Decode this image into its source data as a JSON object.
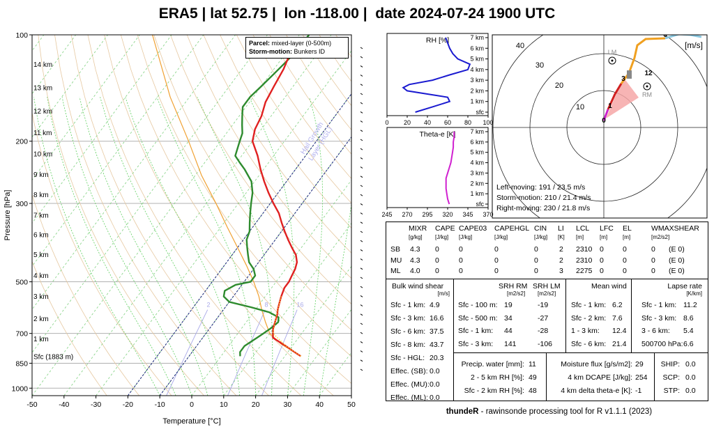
{
  "title": "ERA5 | lat 52.75 |  lon -118.00 |  date 2024-07-24 1900 UTC",
  "skewt": {
    "xlabel": "Temperature [°C]",
    "ylabel": "Pressure [hPa]",
    "xticks": [
      "-50",
      "-40",
      "-30",
      "-20",
      "-10",
      "0",
      "10",
      "20",
      "30",
      "40",
      "50"
    ],
    "xvalues": [
      -50,
      -40,
      -30,
      -20,
      -10,
      0,
      10,
      20,
      30,
      40,
      50
    ],
    "pticks": [
      "100",
      "200",
      "300",
      "500",
      "700",
      "850",
      "1000"
    ],
    "pvalues": [
      100,
      200,
      300,
      500,
      700,
      850,
      1000
    ],
    "km_labels": [
      "14 km",
      "13 km",
      "12 km",
      "11 km",
      "10 km",
      "9 km",
      "8 km",
      "7 km",
      "6 km",
      "5 km",
      "4 km",
      "3 km",
      "2 km",
      "1 km",
      "Sfc (1883 m)"
    ],
    "km_pressures": [
      121,
      141,
      164,
      189,
      217,
      248,
      283,
      323,
      367,
      418,
      479,
      549,
      634,
      723,
      812
    ],
    "legend_parcel_label": "Parcel:",
    "legend_parcel_value": "mixed-layer (0-500m)",
    "legend_storm_label": "Storm-motion:",
    "legend_storm_value": "Bunkers ID",
    "hgl_label_1": "Hail Growth",
    "hgl_label_2": "Layer (HGL)",
    "mixr_labels": [
      "2",
      "8",
      "16"
    ]
  },
  "chart_data": {
    "type": "line",
    "title": "ERA5 | lat 52.75 |  lon -118.00 |  date 2024-07-24 1900 UTC",
    "xlabel": "Temperature [°C]",
    "ylabel": "Pressure [hPa]",
    "xlim": [
      -50,
      50
    ],
    "ylim": [
      1000,
      100
    ],
    "series": [
      {
        "name": "temperature",
        "color": "#e02020",
        "p": [
          812,
          790,
          760,
          740,
          720,
          700,
          680,
          650,
          620,
          600,
          575,
          550,
          520,
          500,
          480,
          460,
          440,
          420,
          400,
          380,
          360,
          340,
          320,
          300,
          280,
          260,
          240,
          220,
          200,
          185,
          170,
          155,
          140,
          125,
          110
        ],
        "t": [
          25,
          22,
          18,
          15,
          12,
          11,
          10,
          9,
          8,
          7,
          6,
          5,
          4,
          4,
          3.5,
          3,
          2,
          0,
          -3,
          -6,
          -9,
          -12,
          -15,
          -19,
          -23,
          -27,
          -31,
          -35,
          -40,
          -42,
          -43,
          -45,
          -46,
          -47,
          -49
        ]
      },
      {
        "name": "dewpoint",
        "color": "#2e8b2e",
        "p": [
          812,
          790,
          760,
          740,
          720,
          700,
          680,
          650,
          630,
          610,
          590,
          570,
          550,
          530,
          510,
          500,
          480,
          460,
          440,
          420,
          400,
          380,
          360,
          340,
          320,
          300,
          280,
          260,
          240,
          230,
          220,
          200,
          190,
          180,
          170,
          160,
          150,
          140,
          130,
          120,
          110,
          100
        ],
        "td": [
          6,
          5,
          5,
          6,
          7,
          8,
          9,
          10,
          9,
          5,
          -2,
          -10,
          -13,
          -14,
          -12,
          -8,
          -8,
          -10,
          -13,
          -15,
          -17,
          -19,
          -20,
          -22,
          -24,
          -26,
          -28,
          -31,
          -36,
          -39,
          -42,
          -44,
          -45,
          -47,
          -49,
          -51,
          -51,
          -50,
          -49,
          -48,
          -47,
          -47
        ]
      },
      {
        "name": "parcel",
        "color": "#f0a030",
        "p": [
          812,
          750,
          700,
          650,
          600,
          550,
          500,
          450,
          400,
          350,
          300,
          250,
          200,
          150,
          100
        ],
        "t": [
          25,
          16,
          10,
          6,
          2,
          -2,
          -7,
          -13,
          -20,
          -28,
          -37,
          -48,
          -60,
          -76,
          -96
        ]
      }
    ]
  },
  "barbs_color": "#000000",
  "rh_panel": {
    "title": "RH [%]",
    "heights": [
      "7 km",
      "6 km",
      "5 km",
      "4 km",
      "3 km",
      "2 km",
      "1 km",
      "sfc"
    ],
    "xticks": [
      "0",
      "20",
      "40",
      "60",
      "80",
      "100"
    ],
    "xvalues": [
      0,
      20,
      40,
      60,
      80,
      100
    ],
    "profile_km": [
      0,
      0.5,
      1,
      1.4,
      1.7,
      2,
      2.3,
      2.6,
      3,
      3.5,
      4,
      4.5,
      5,
      5.5,
      6,
      6.5,
      7
    ],
    "profile_rh": [
      28,
      45,
      62,
      60,
      40,
      20,
      16,
      22,
      45,
      62,
      80,
      82,
      70,
      65,
      62,
      60,
      58
    ]
  },
  "thetae_panel": {
    "title": "Theta-e [K]",
    "heights": [
      "7 km",
      "6 km",
      "5 km",
      "4 km",
      "3 km",
      "2 km",
      "1 km",
      "sfc"
    ],
    "xticks": [
      "245",
      "270",
      "295",
      "320",
      "345",
      "370"
    ],
    "xvalues": [
      245,
      270,
      295,
      320,
      345,
      370
    ],
    "profile_km": [
      0,
      0.5,
      1,
      1.5,
      2,
      2.5,
      3,
      3.5,
      4,
      4.5,
      5,
      5.5,
      6,
      6.5,
      7
    ],
    "profile_th": [
      322,
      320,
      319,
      318,
      318,
      318,
      320,
      322,
      324,
      325,
      326,
      327,
      327,
      328,
      328
    ]
  },
  "hodograph": {
    "unit": "[m/s]",
    "ring_labels": [
      "10",
      "20",
      "30",
      "40"
    ],
    "ring_values": [
      10,
      20,
      30,
      40
    ],
    "height_labels": [
      "0",
      "1",
      "3",
      "6",
      "12"
    ],
    "lm_label": "LM",
    "rm_label": "RM",
    "left_moving": "Left-moving: 191 / 23.5 m/s",
    "storm_motion": "Storm-motion: 210 / 21.4 m/s",
    "right_moving": "Right-moving: 230 / 21.8 m/s"
  },
  "params": {
    "headers": [
      "MIXR",
      "CAPE",
      "CAPE03",
      "CAPEHGL",
      "CIN",
      "LI",
      "LCL",
      "LFC",
      "EL",
      "WMAXSHEAR"
    ],
    "units": [
      "[g/kg]",
      "[J/kg]",
      "[J/kg]",
      "[J/kg]",
      "[J/kg]",
      "[K]",
      "[m]",
      "[m]",
      "[m]",
      "[m2/s2]"
    ],
    "rows": [
      {
        "label": "SB",
        "values": [
          "4.3",
          "0",
          "0",
          "0",
          "0",
          "2",
          "2310",
          "0",
          "0",
          "0",
          "(E 0)"
        ]
      },
      {
        "label": "MU",
        "values": [
          "4.3",
          "0",
          "0",
          "0",
          "0",
          "2",
          "2310",
          "0",
          "0",
          "0",
          "(E 0)"
        ]
      },
      {
        "label": "ML",
        "values": [
          "4.0",
          "0",
          "0",
          "0",
          "0",
          "3",
          "2275",
          "0",
          "0",
          "0",
          "(E 0)"
        ]
      }
    ]
  },
  "bulk_shear": {
    "title": "Bulk wind shear",
    "unit": "[m/s]",
    "rows": [
      [
        "Sfc - 1 km:",
        "4.9"
      ],
      [
        "Sfc - 3 km:",
        "16.6"
      ],
      [
        "Sfc - 6 km:",
        "37.5"
      ],
      [
        "Sfc - 8 km:",
        "43.7"
      ],
      [
        "Sfc - HGL:",
        "20.3"
      ],
      [
        "Effec. (SB):",
        "0.0"
      ],
      [
        "Effec. (MU):",
        "0.0"
      ],
      [
        "Effec. (ML):",
        "0.0"
      ]
    ]
  },
  "srh": {
    "title_rm": "SRH RM",
    "title_lm": "SRH LM",
    "unit_rm": "[m2/s2]",
    "unit_lm": "[m2/s2]",
    "rows": [
      [
        "Sfc - 100 m:",
        "19",
        "-19"
      ],
      [
        "Sfc - 500 m:",
        "34",
        "-27"
      ],
      [
        "Sfc - 1 km:",
        "44",
        "-28"
      ],
      [
        "Sfc - 3 km:",
        "141",
        "-106"
      ]
    ]
  },
  "mean_wind": {
    "title": "Mean wind",
    "rows": [
      [
        "Sfc - 1 km:",
        "6.2"
      ],
      [
        "Sfc - 2 km:",
        "7.6"
      ],
      [
        "1 - 3 km:",
        "12.4"
      ],
      [
        "Sfc - 6 km:",
        "21.4"
      ]
    ]
  },
  "lapse": {
    "title": "Lapse rate",
    "unit": "[K/km]",
    "rows": [
      [
        "Sfc - 1 km:",
        "11.2"
      ],
      [
        "Sfc - 3 km:",
        "8.6"
      ],
      [
        "3 - 6 km:",
        "5.4"
      ],
      [
        "500700 hPa:",
        "6.6"
      ]
    ]
  },
  "moisture": {
    "rows": [
      [
        "Precip. water [mm]:",
        "11"
      ],
      [
        "2 - 5 km RH [%]:",
        "49"
      ],
      [
        "Sfc - 2 km RH [%]:",
        "48"
      ]
    ]
  },
  "flux": {
    "rows": [
      [
        "Moisture flux [g/s/m2]:",
        "29"
      ],
      [
        "4 km DCAPE [J/kg]:",
        "254"
      ],
      [
        "4 km delta theta-e [K]:",
        "-1"
      ]
    ]
  },
  "composite": {
    "rows": [
      [
        "SHIP:",
        "0.0"
      ],
      [
        "SCP:",
        "0.0"
      ],
      [
        "STP:",
        "0.0"
      ]
    ]
  },
  "footer_bold": "thundeR",
  "footer_rest": " - rawinsonde processing tool for R v1.1.1 (2023)"
}
